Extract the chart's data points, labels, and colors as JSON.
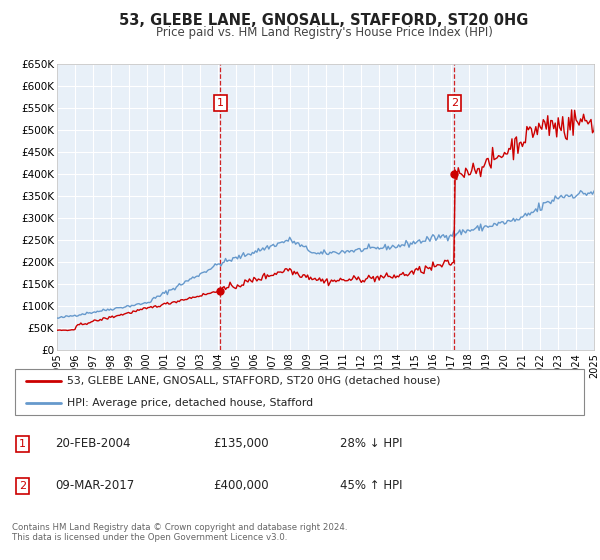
{
  "title": "53, GLEBE LANE, GNOSALL, STAFFORD, ST20 0HG",
  "subtitle": "Price paid vs. HM Land Registry's House Price Index (HPI)",
  "ylim": [
    0,
    650000
  ],
  "xlim": [
    1995,
    2025
  ],
  "yticks": [
    0,
    50000,
    100000,
    150000,
    200000,
    250000,
    300000,
    350000,
    400000,
    450000,
    500000,
    550000,
    600000,
    650000
  ],
  "ytick_labels": [
    "£0",
    "£50K",
    "£100K",
    "£150K",
    "£200K",
    "£250K",
    "£300K",
    "£350K",
    "£400K",
    "£450K",
    "£500K",
    "£550K",
    "£600K",
    "£650K"
  ],
  "xticks": [
    1995,
    1996,
    1997,
    1998,
    1999,
    2000,
    2001,
    2002,
    2003,
    2004,
    2005,
    2006,
    2007,
    2008,
    2009,
    2010,
    2011,
    2012,
    2013,
    2014,
    2015,
    2016,
    2017,
    2018,
    2019,
    2020,
    2021,
    2022,
    2023,
    2024,
    2025
  ],
  "bg_color": "#e8f0f8",
  "grid_color": "#ffffff",
  "property_color": "#cc0000",
  "hpi_color": "#6699cc",
  "sale1_x": 2004.13,
  "sale1_y": 135000,
  "sale1_label": "1",
  "sale1_date": "20-FEB-2004",
  "sale1_price": "£135,000",
  "sale1_hpi": "28% ↓ HPI",
  "sale2_x": 2017.19,
  "sale2_y": 400000,
  "sale2_label": "2",
  "sale2_date": "09-MAR-2017",
  "sale2_price": "£400,000",
  "sale2_hpi": "45% ↑ HPI",
  "legend_line1": "53, GLEBE LANE, GNOSALL, STAFFORD, ST20 0HG (detached house)",
  "legend_line2": "HPI: Average price, detached house, Stafford",
  "footer_line1": "Contains HM Land Registry data © Crown copyright and database right 2024.",
  "footer_line2": "This data is licensed under the Open Government Licence v3.0."
}
